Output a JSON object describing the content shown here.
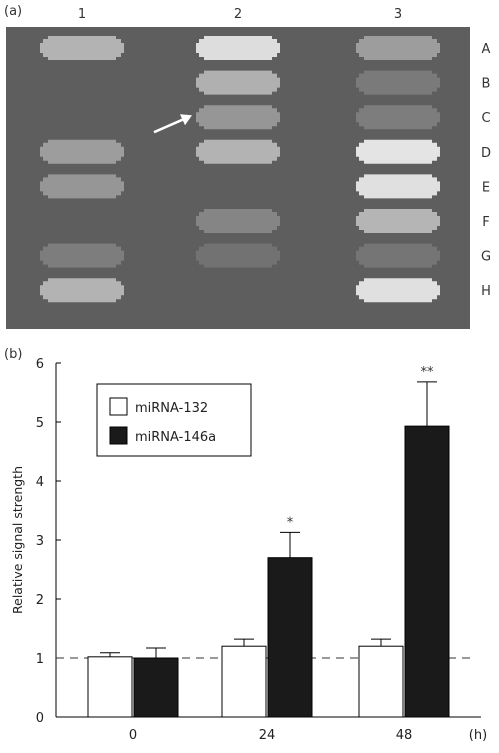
{
  "panel_a": {
    "label": "(a)",
    "column_labels": [
      "1",
      "2",
      "3"
    ],
    "row_labels": [
      "A",
      "B",
      "C",
      "D",
      "E",
      "F",
      "G",
      "H"
    ],
    "background_color": "#5e5e5e",
    "spots": [
      {
        "col": 1,
        "row": "A",
        "intensity": 0.6
      },
      {
        "col": 1,
        "row": "D",
        "intensity": 0.45
      },
      {
        "col": 1,
        "row": "E",
        "intensity": 0.4
      },
      {
        "col": 1,
        "row": "G",
        "intensity": 0.22
      },
      {
        "col": 1,
        "row": "H",
        "intensity": 0.6
      },
      {
        "col": 2,
        "row": "A",
        "intensity": 0.9
      },
      {
        "col": 2,
        "row": "B",
        "intensity": 0.58
      },
      {
        "col": 2,
        "row": "C",
        "intensity": 0.4
      },
      {
        "col": 2,
        "row": "D",
        "intensity": 0.6
      },
      {
        "col": 2,
        "row": "F",
        "intensity": 0.28
      },
      {
        "col": 2,
        "row": "G",
        "intensity": 0.14
      },
      {
        "col": 3,
        "row": "A",
        "intensity": 0.45
      },
      {
        "col": 3,
        "row": "B",
        "intensity": 0.2
      },
      {
        "col": 3,
        "row": "C",
        "intensity": 0.22
      },
      {
        "col": 3,
        "row": "D",
        "intensity": 0.95
      },
      {
        "col": 3,
        "row": "E",
        "intensity": 0.92
      },
      {
        "col": 3,
        "row": "F",
        "intensity": 0.62
      },
      {
        "col": 3,
        "row": "G",
        "intensity": 0.16
      },
      {
        "col": 3,
        "row": "H",
        "intensity": 0.92
      }
    ],
    "arrow_target": {
      "col": 2,
      "row": "C"
    }
  },
  "chart_data": {
    "type": "bar",
    "panel_label": "(b)",
    "categories": [
      "0",
      "24",
      "48"
    ],
    "x_unit": "(h)",
    "ylabel": "Relative signal strength",
    "ylim": [
      0,
      6
    ],
    "yticks": [
      "0",
      "1",
      "2",
      "3",
      "4",
      "5",
      "6"
    ],
    "reference_line": 1,
    "series": [
      {
        "name": "miRNA-132",
        "values": [
          1.02,
          1.2,
          1.2
        ],
        "errors": [
          0.07,
          0.12,
          0.12
        ],
        "color": "#ffffff"
      },
      {
        "name": "miRNA-146a",
        "values": [
          1.0,
          2.7,
          4.93
        ],
        "errors": [
          0.17,
          0.43,
          0.75
        ],
        "color": "#1a1a1a"
      }
    ],
    "significance": [
      "",
      "*",
      "**"
    ],
    "legend_position": "top-left"
  }
}
